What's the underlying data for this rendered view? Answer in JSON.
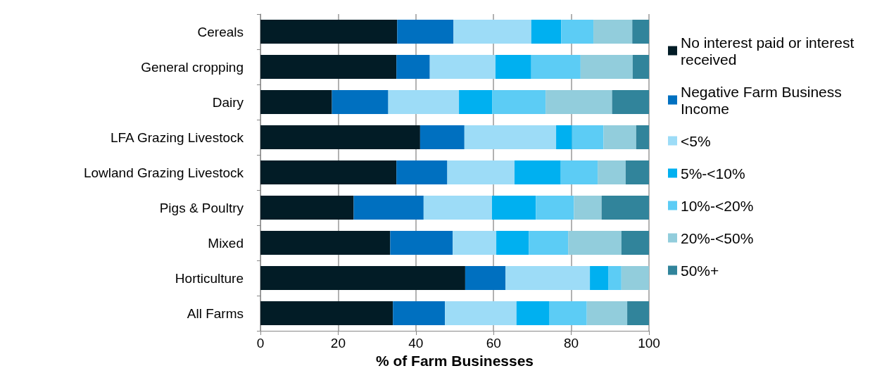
{
  "chart_data": {
    "type": "bar",
    "orientation": "horizontal",
    "stacked": true,
    "xlabel": "% of Farm Businesses",
    "categories": [
      "Cereals",
      "General cropping",
      "Dairy",
      "LFA Grazing Livestock",
      "Lowland Grazing Livestock",
      "Pigs & Poultry",
      "Mixed",
      "Horticulture",
      "All Farms"
    ],
    "series": [
      {
        "name": "No interest paid or interest received",
        "color": "#021c26",
        "values": [
          35.2,
          35.0,
          18.4,
          41.1,
          35.0,
          24.0,
          33.4,
          52.7,
          34.1
        ]
      },
      {
        "name": "Negative Farm Business Income",
        "color": "#0070c0",
        "values": [
          14.5,
          8.6,
          14.5,
          11.4,
          13.1,
          18.0,
          16.1,
          10.4,
          13.4
        ]
      },
      {
        "name": "<5%",
        "color": "#9ddcf7",
        "values": [
          20.0,
          16.9,
          18.2,
          23.6,
          17.3,
          17.6,
          11.2,
          21.7,
          18.4
        ]
      },
      {
        "name": "5%-<10%",
        "color": "#00b0f0",
        "values": [
          7.7,
          9.2,
          8.6,
          4.1,
          11.9,
          11.3,
          8.4,
          4.8,
          8.5
        ]
      },
      {
        "name": "10%-<20%",
        "color": "#5cccf5",
        "values": [
          8.3,
          12.7,
          13.7,
          8.1,
          9.5,
          9.8,
          10.1,
          3.3,
          9.6
        ]
      },
      {
        "name": "20%-<50%",
        "color": "#92cddc",
        "values": [
          10.0,
          13.4,
          17.1,
          8.4,
          7.2,
          7.1,
          13.7,
          7.1,
          10.4
        ]
      },
      {
        "name": "50%+",
        "color": "#31849b",
        "values": [
          4.3,
          4.2,
          9.5,
          3.3,
          6.0,
          12.2,
          7.1,
          0,
          5.6
        ]
      }
    ],
    "xlim": [
      0,
      100
    ],
    "xticks": [
      0,
      20,
      40,
      60,
      80,
      100
    ],
    "grid": "x",
    "legend": "right"
  }
}
